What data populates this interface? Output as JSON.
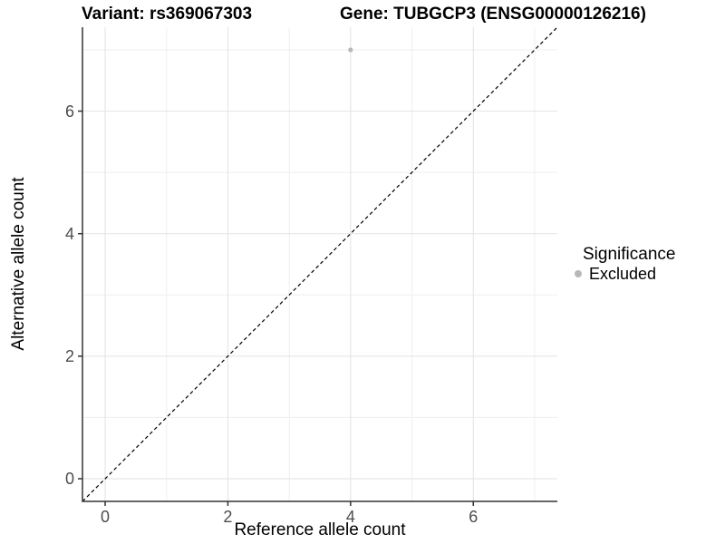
{
  "header": {
    "title_variant": "Variant: rs369067303",
    "title_gene": "Gene: TUBGCP3 (ENSG00000126216)"
  },
  "chart_data": {
    "type": "scatter",
    "xlabel": "Reference allele count",
    "ylabel": "Alternative allele count",
    "xlim": [
      -0.37,
      7.37
    ],
    "ylim": [
      -0.37,
      7.37
    ],
    "xticks": [
      0,
      2,
      4,
      6
    ],
    "yticks": [
      0,
      2,
      4,
      6
    ],
    "xticks_minor": [
      1,
      3,
      5,
      7
    ],
    "yticks_minor": [
      1,
      3,
      5,
      7
    ],
    "grid": true,
    "series": [
      {
        "name": "Excluded",
        "color": "#b8b8b8",
        "points": [
          {
            "x": 4,
            "y": 7
          }
        ]
      }
    ],
    "reference_line": {
      "type": "identity",
      "equation": "y = x",
      "style": "dashed",
      "color": "#000000"
    },
    "legend": {
      "position": "right",
      "title": "Significance",
      "entries": [
        {
          "label": "Excluded",
          "color": "#b8b8b8"
        }
      ]
    }
  },
  "colors": {
    "background": "#ffffff",
    "grid_major": "#e2e2e2",
    "grid_minor": "#efefef",
    "axis_line": "#333333",
    "tick_mark": "#333333",
    "tick_label": "#4d4d4d",
    "point": "#b8b8b8"
  }
}
